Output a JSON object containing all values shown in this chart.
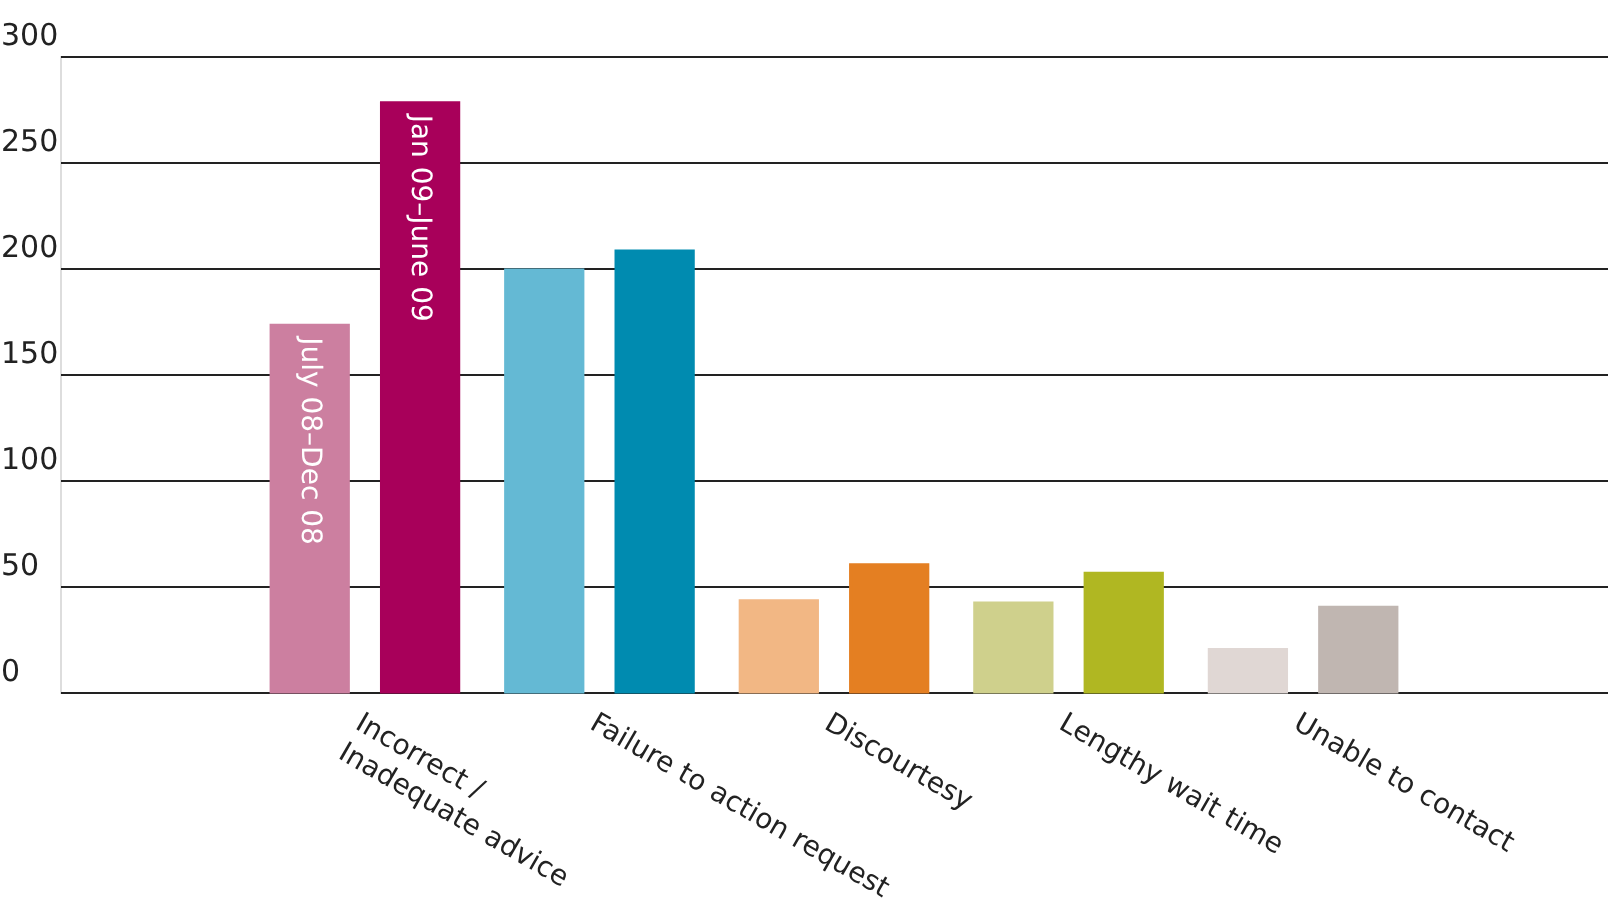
{
  "chart_data": {
    "type": "bar",
    "categories": [
      "Incorrect /\nInadequate advice",
      "Failure to action request",
      "Discourtesy",
      "Lengthy wait time",
      "Unable to contact"
    ],
    "series": [
      {
        "name": "July 08–Dec 08",
        "colors": [
          "#cc7fa0",
          "#64b9d4",
          "#f2b784",
          "#cfd08c",
          "#e0d7d4"
        ],
        "values": [
          173,
          199,
          43,
          42,
          20
        ]
      },
      {
        "name": "Jan 09–June 09",
        "colors": [
          "#a8005a",
          "#008bb0",
          "#e47f22",
          "#b0b722",
          "#c0b6b1"
        ],
        "values": [
          278,
          208,
          60,
          56,
          40
        ]
      }
    ],
    "ylim": [
      0,
      300
    ],
    "yticks": [
      0,
      50,
      100,
      150,
      200,
      250,
      300
    ],
    "grid": "y"
  }
}
